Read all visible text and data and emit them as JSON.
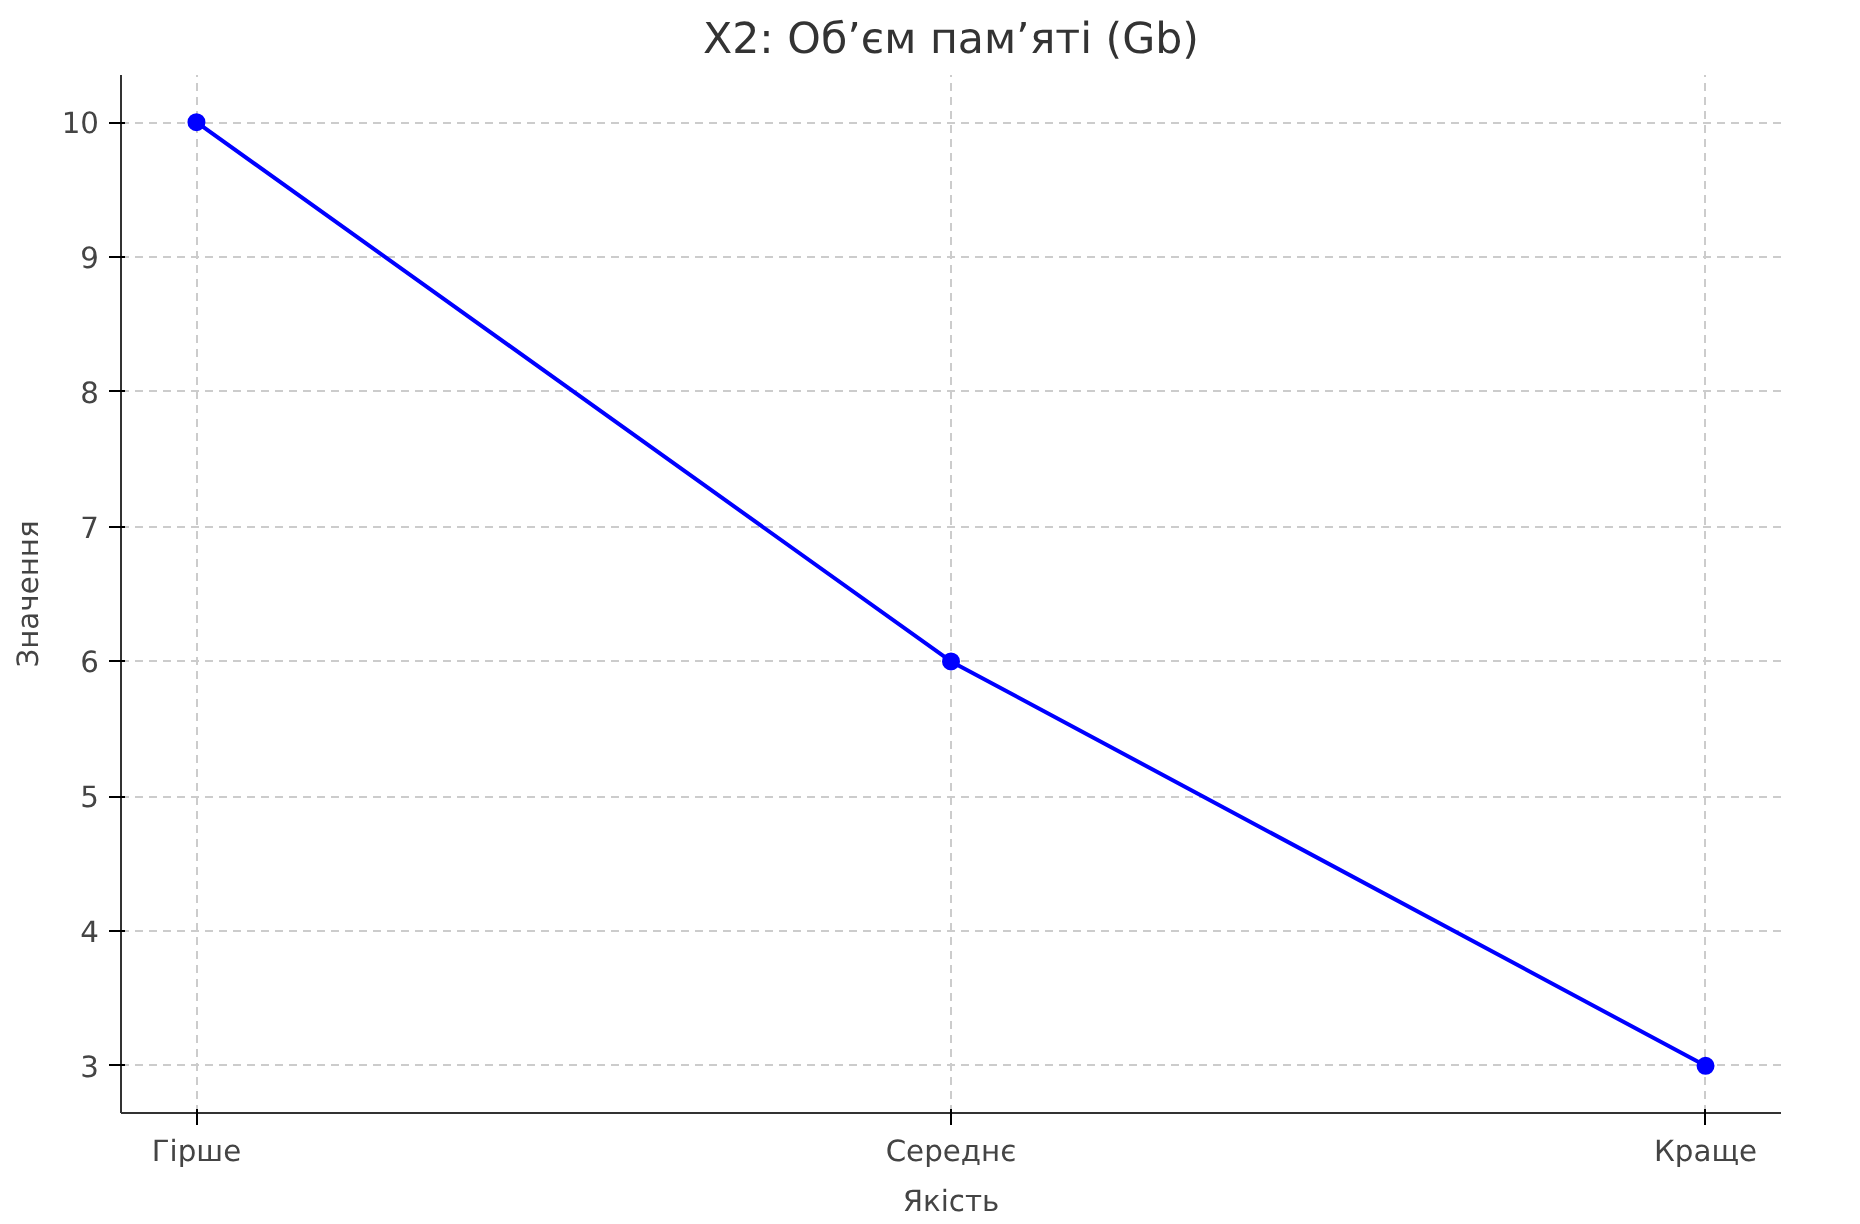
{
  "chart_data": {
    "type": "line",
    "title": "X2: Об’єм пам’яті (Gb)",
    "xlabel": "Якість",
    "ylabel": "Значення",
    "categories": [
      "Гірше",
      "Середнє",
      "Краще"
    ],
    "series": [
      {
        "color": "#0000ff",
        "values": [
          10,
          6,
          3
        ]
      }
    ],
    "ylim": [
      2.65,
      10.35
    ],
    "yticks": [
      3,
      4,
      5,
      6,
      7,
      8,
      9,
      10
    ],
    "grid": true,
    "marker": "circle",
    "line_style": "solid"
  }
}
